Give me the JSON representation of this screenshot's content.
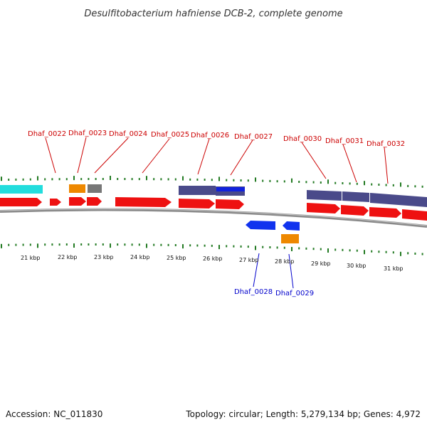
{
  "title": "Desulfitobacterium hafniense DCB-2, complete genome",
  "footer": {
    "accession": "Accession: NC_011830",
    "summary": "Topology: circular; Length: 5,279,134 bp; Genes: 4,972"
  },
  "colors": {
    "forward_label": "#cc0000",
    "reverse_label": "#0000cc",
    "tick": "#227a22",
    "backbone": "#8a8a8a",
    "cds": "#ee1111",
    "cds_reverse": "#1133ee",
    "misc_cyan": "#22dddd",
    "misc_orange": "#ee8800",
    "misc_gray": "#777777",
    "misc_purple": "#4a4a8a",
    "misc_blue": "#1122dd"
  },
  "kbp_labels": [
    "21 kbp",
    "22 kbp",
    "23 kbp",
    "24 kbp",
    "25 kbp",
    "26 kbp",
    "27 kbp",
    "28 kbp",
    "29 kbp",
    "30 kbp",
    "31 kbp"
  ],
  "forward_genes": [
    "Dhaf_0022",
    "Dhaf_0023",
    "Dhaf_0024",
    "Dhaf_0025",
    "Dhaf_0026",
    "Dhaf_0027",
    "Dhaf_0030",
    "Dhaf_0031",
    "Dhaf_0032"
  ],
  "reverse_genes": [
    "Dhaf_0028",
    "Dhaf_0029"
  ]
}
